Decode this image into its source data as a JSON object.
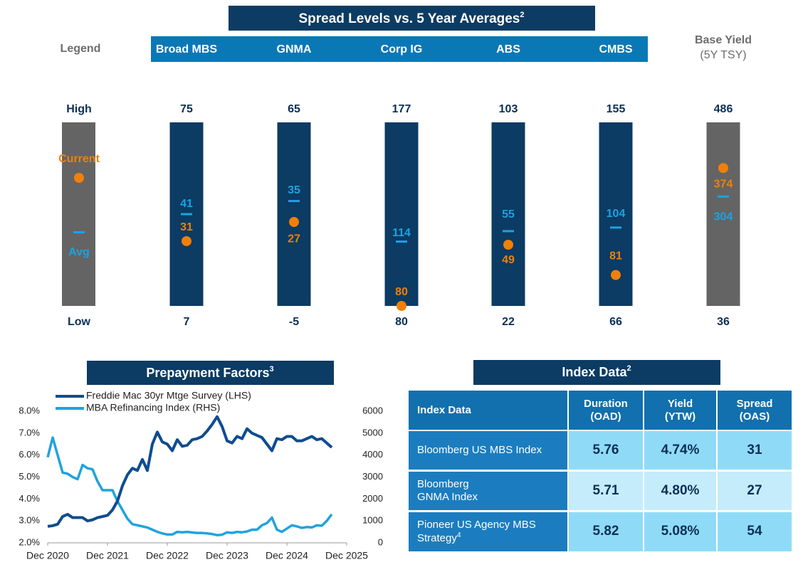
{
  "chart_data": [
    {
      "type": "range",
      "title": "Spread Levels vs. 5 Year Averages",
      "title_footnote": "2",
      "legend_title": "Legend",
      "legend_labels": {
        "high": "High",
        "current": "Current",
        "avg": "Avg",
        "low": "Low"
      },
      "categories": [
        "Broad MBS",
        "GNMA",
        "Corp IG",
        "ABS",
        "CMBS",
        "Base Yield"
      ],
      "base_note": "(5Y TSY)",
      "high": [
        75,
        65,
        177,
        103,
        155,
        486
      ],
      "low": [
        7,
        -5,
        80,
        22,
        66,
        36
      ],
      "current": [
        31,
        27,
        80,
        49,
        81,
        374
      ],
      "avg": [
        41,
        35,
        114,
        55,
        104,
        304
      ],
      "bar_colors": [
        "#0c3b63",
        "#0c3b63",
        "#0c3b63",
        "#0c3b63",
        "#0c3b63",
        "#646464"
      ],
      "current_color": "#f0800a",
      "avg_color": "#1ba3e0"
    },
    {
      "type": "line",
      "title": "Prepayment Factors",
      "title_footnote": "3",
      "x": [
        "2020-12",
        "2021-01",
        "2021-02",
        "2021-03",
        "2021-04",
        "2021-05",
        "2021-06",
        "2021-07",
        "2021-08",
        "2021-09",
        "2021-10",
        "2021-11",
        "2021-12",
        "2022-01",
        "2022-02",
        "2022-03",
        "2022-04",
        "2022-05",
        "2022-06",
        "2022-07",
        "2022-08",
        "2022-09",
        "2022-10",
        "2022-11",
        "2022-12",
        "2023-01",
        "2023-02",
        "2023-03",
        "2023-04",
        "2023-05",
        "2023-06",
        "2023-07",
        "2023-08",
        "2023-09",
        "2023-10",
        "2023-11",
        "2023-12",
        "2024-01",
        "2024-02",
        "2024-03",
        "2024-04",
        "2024-05",
        "2024-06",
        "2024-07",
        "2024-08",
        "2024-09",
        "2024-10",
        "2024-11",
        "2024-12",
        "2025-01",
        "2025-02",
        "2025-03",
        "2025-04",
        "2025-05",
        "2025-06",
        "2025-07",
        "2025-08",
        "2025-09"
      ],
      "xlim": [
        "2020-12",
        "2025-12"
      ],
      "xticks": [
        {
          "value": "2020-12",
          "label": "Dec 2020"
        },
        {
          "value": "2021-12",
          "label": "Dec 2021"
        },
        {
          "value": "2022-12",
          "label": "Dec 2022"
        },
        {
          "value": "2023-12",
          "label": "Dec 2023"
        },
        {
          "value": "2024-12",
          "label": "Dec 2024"
        },
        {
          "value": "2025-12",
          "label": "Dec 2025"
        }
      ],
      "ylim": [
        2,
        8
      ],
      "yticks": [
        {
          "value": 2,
          "label": "2.0%"
        },
        {
          "value": 3,
          "label": "3.0%"
        },
        {
          "value": 4,
          "label": "4.0%"
        },
        {
          "value": 5,
          "label": "5.0%"
        },
        {
          "value": 6,
          "label": "6.0%"
        },
        {
          "value": 7,
          "label": "7.0%"
        },
        {
          "value": 8,
          "label": "8.0%"
        }
      ],
      "y2lim": [
        0,
        6000
      ],
      "y2ticks": [
        0,
        1000,
        2000,
        3000,
        4000,
        5000,
        6000
      ],
      "grid": false,
      "series": [
        {
          "name": "Freddie Mac 30yr Mtge Survey (LHS)",
          "color": "#0f4c8f",
          "values": [
            2.75,
            2.78,
            2.85,
            3.2,
            3.3,
            3.15,
            3.15,
            3.15,
            3.0,
            3.05,
            3.15,
            3.2,
            3.25,
            3.5,
            3.9,
            4.6,
            5.1,
            5.4,
            5.3,
            5.8,
            5.3,
            6.5,
            7.05,
            6.6,
            6.5,
            6.2,
            6.7,
            6.4,
            6.45,
            6.7,
            6.75,
            6.85,
            7.1,
            7.4,
            7.75,
            7.3,
            6.65,
            6.55,
            6.85,
            6.75,
            7.2,
            7.0,
            6.9,
            6.8,
            6.5,
            6.2,
            6.75,
            6.7,
            6.85,
            6.85,
            6.65,
            6.65,
            6.75,
            6.85,
            6.7,
            6.75,
            6.55,
            6.35
          ]
        },
        {
          "name": "MBA Refinancing Index (RHS)",
          "color": "#20a3dc",
          "axis": "y2",
          "values": [
            3900,
            4800,
            4000,
            3200,
            3150,
            3000,
            2900,
            3550,
            3400,
            3350,
            2800,
            2400,
            2400,
            2400,
            1900,
            1500,
            1100,
            850,
            800,
            750,
            700,
            600,
            500,
            430,
            380,
            380,
            500,
            480,
            500,
            470,
            450,
            450,
            430,
            400,
            350,
            370,
            480,
            450,
            500,
            480,
            520,
            600,
            600,
            800,
            900,
            1150,
            600,
            500,
            650,
            800,
            750,
            680,
            720,
            700,
            800,
            780,
            1000,
            1300
          ]
        }
      ]
    }
  ],
  "index_data": {
    "title": "Index Data",
    "title_footnote": "2",
    "header": [
      "Index Data",
      "Duration\n(OAD)",
      "Yield\n(YTW)",
      "Spread\n(OAS)"
    ],
    "rows": [
      {
        "name": "Bloomberg US MBS Index",
        "cells": [
          "5.76",
          "4.74%",
          "31"
        ]
      },
      {
        "name": "Bloomberg\nGNMA Index",
        "cells": [
          "5.71",
          "4.80%",
          "27"
        ]
      },
      {
        "name": "Pioneer US Agency MBS\nStrategy",
        "footnote": "4",
        "cells": [
          "5.82",
          "5.08%",
          "54"
        ]
      }
    ]
  }
}
